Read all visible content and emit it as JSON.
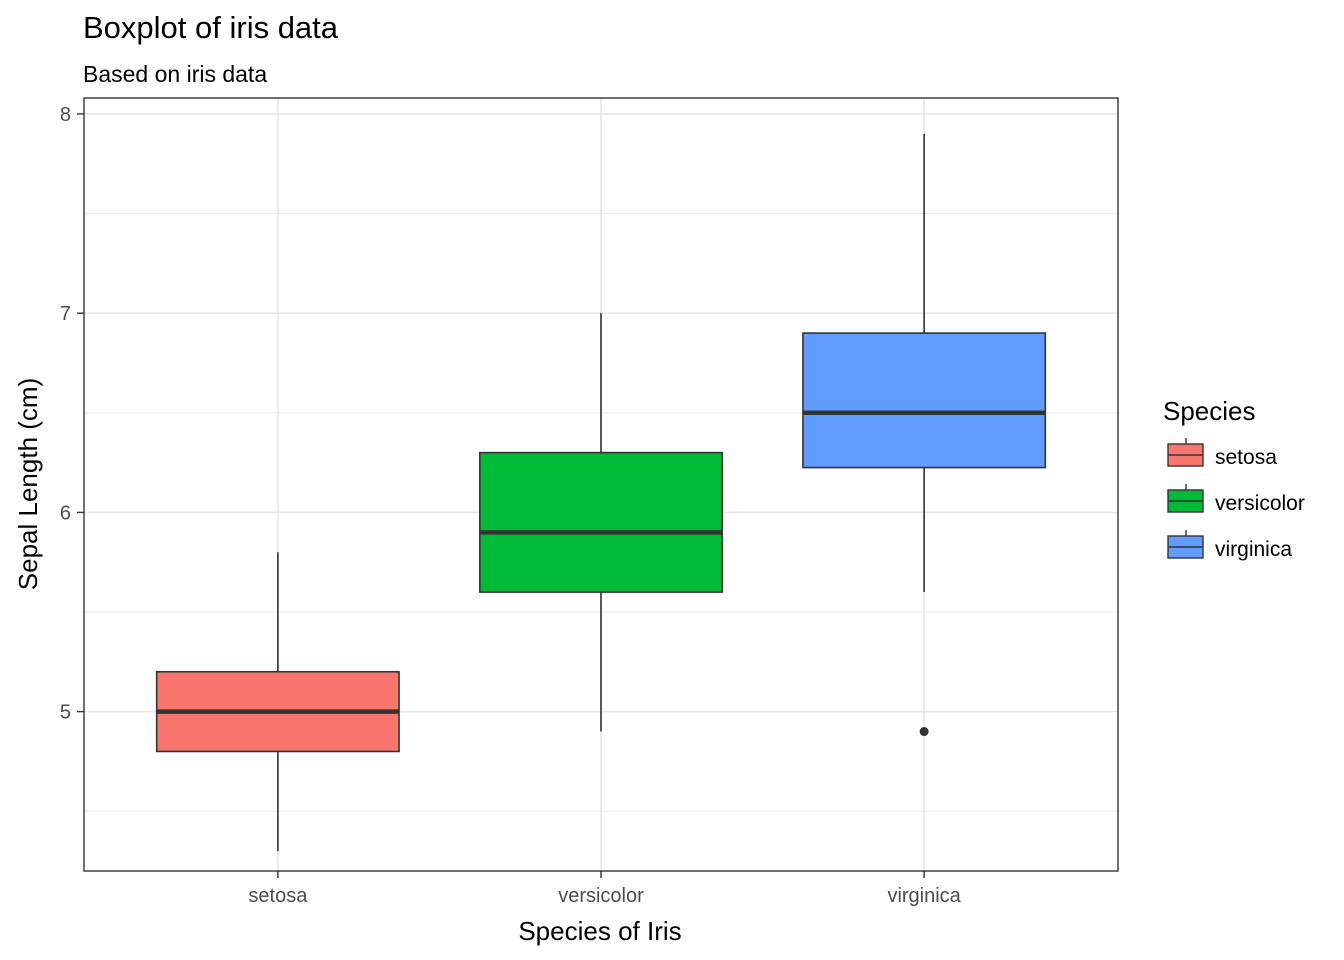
{
  "chart_data": {
    "type": "boxplot",
    "title": "Boxplot of iris data",
    "subtitle": "Based on iris data",
    "xlabel": "Species of Iris",
    "ylabel": "Sepal Length (cm)",
    "ylim": [
      4.2,
      8.08
    ],
    "yticks": [
      5,
      6,
      7,
      8
    ],
    "ytick_labels": [
      "5",
      "6",
      "7",
      "8"
    ],
    "grid": true,
    "legend": {
      "title": "Species",
      "placement": "right"
    },
    "categories": [
      "setosa",
      "versicolor",
      "virginica"
    ],
    "series": [
      {
        "name": "setosa",
        "color": "#F8766D",
        "min": 4.3,
        "q1": 4.8,
        "median": 5.0,
        "q3": 5.2,
        "max": 5.8,
        "outliers": []
      },
      {
        "name": "versicolor",
        "color": "#00BA38",
        "min": 4.9,
        "q1": 5.6,
        "median": 5.9,
        "q3": 6.3,
        "max": 7.0,
        "outliers": []
      },
      {
        "name": "virginica",
        "color": "#619CFF",
        "min": 5.6,
        "q1": 6.225,
        "median": 6.5,
        "q3": 6.9,
        "max": 7.9,
        "outliers": [
          4.9
        ]
      }
    ]
  }
}
